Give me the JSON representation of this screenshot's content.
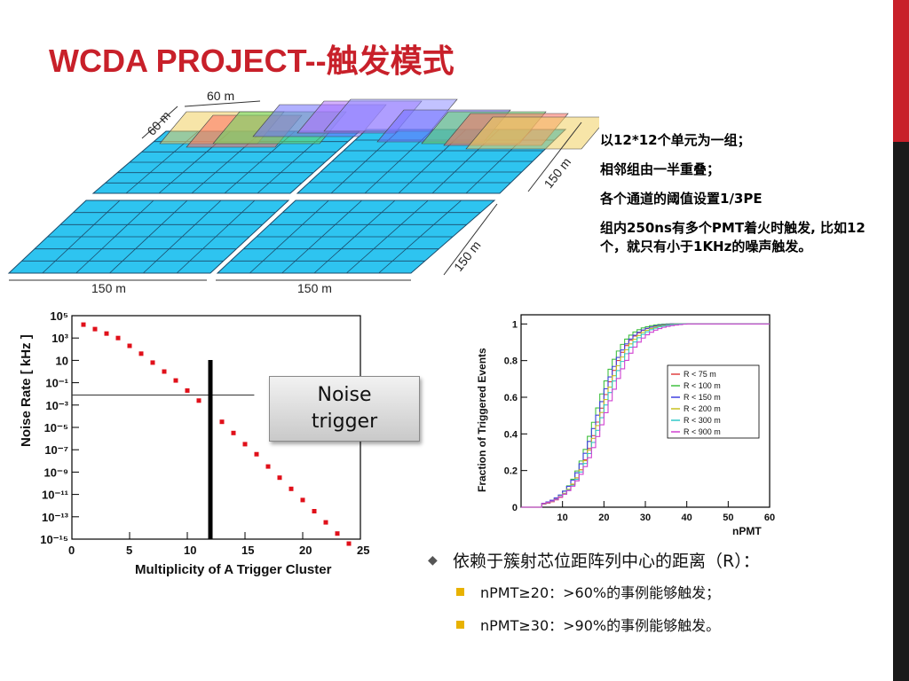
{
  "title": "WCDA PROJECT--触发模式",
  "notes": {
    "line1": "以12*12个单元为一组；",
    "line2": "相邻组由一半重叠；",
    "line3": "各个通道的阈值设置1/3PE",
    "line4": "组内250ns有多个PMT着火时触发, 比如12个，就只有小于1KHz的噪声触发。"
  },
  "diagram": {
    "dim_top": "60 m",
    "dim_side": "60 m",
    "dim_right_upper": "150 m",
    "dim_right_lower": "150 m",
    "dim_bottom_left": "150 m",
    "dim_bottom_right": "150 m",
    "pool_color": "#2ec4f0"
  },
  "callout": {
    "line1": "Noise",
    "line2": "trigger"
  },
  "bullets": {
    "main": "依赖于簇射芯位距阵列中心的距离（R）：",
    "sub1": "nPMT≥20：>60%的事例能够触发；",
    "sub2": "nPMT≥30：>90%的事例能够触发。"
  },
  "colors": {
    "accent": "#c8202a",
    "marker": "#e0101a"
  },
  "chart_data": [
    {
      "type": "scatter",
      "xlabel": "Multiplicity of A Trigger Cluster",
      "ylabel": "Noise Rate [ kHz ]",
      "log_y": true,
      "xlim": [
        0,
        25
      ],
      "ylim_exp": [
        -15,
        5
      ],
      "x_ticks": [
        "0",
        "5",
        "10",
        "15",
        "20",
        "25"
      ],
      "y_ticks": [
        "10⁵",
        "10³",
        "10",
        "10⁻¹",
        "10⁻³",
        "10⁻⁵",
        "10⁻⁷",
        "10⁻⁹",
        "10⁻¹¹",
        "10⁻¹³",
        "10⁻¹⁵"
      ],
      "x": [
        1,
        2,
        3,
        4,
        5,
        6,
        7,
        8,
        9,
        10,
        11,
        12,
        13,
        14,
        15,
        16,
        17,
        18,
        19,
        20,
        21,
        22,
        23,
        24
      ],
      "log10_y": [
        4.2,
        3.8,
        3.4,
        3.0,
        2.3,
        1.6,
        0.8,
        0.0,
        -0.8,
        -1.7,
        -2.6,
        -3.5,
        -4.5,
        -5.5,
        -6.5,
        -7.4,
        -8.5,
        -9.5,
        -10.5,
        -11.5,
        -12.5,
        -13.5,
        -14.5,
        -15.4
      ],
      "threshold_x": 12
    },
    {
      "type": "line",
      "xlabel": "nPMT",
      "ylabel": "Fraction of Triggered Events",
      "xlim": [
        0,
        60
      ],
      "ylim": [
        0,
        1.05
      ],
      "x_ticks": [
        "0",
        "10",
        "20",
        "30",
        "40",
        "50",
        "60"
      ],
      "y_ticks": [
        "0",
        "0.2",
        "0.4",
        "0.6",
        "0.8",
        "1"
      ],
      "legend_placement": "right",
      "series": [
        {
          "name": "R <   75 m",
          "color": "#e04040",
          "x50": 18.5,
          "w": 3.3
        },
        {
          "name": "R <   100 m",
          "color": "#40c040",
          "x50": 17.5,
          "w": 3.2
        },
        {
          "name": "R <   150 m",
          "color": "#4040e0",
          "x50": 18.0,
          "w": 3.4
        },
        {
          "name": "R <   200 m",
          "color": "#c8c020",
          "x50": 18.8,
          "w": 3.5
        },
        {
          "name": "R <   300 m",
          "color": "#30c8c8",
          "x50": 19.2,
          "w": 3.6
        },
        {
          "name": "R <   900 m",
          "color": "#d040d0",
          "x50": 19.8,
          "w": 3.8
        }
      ]
    }
  ]
}
